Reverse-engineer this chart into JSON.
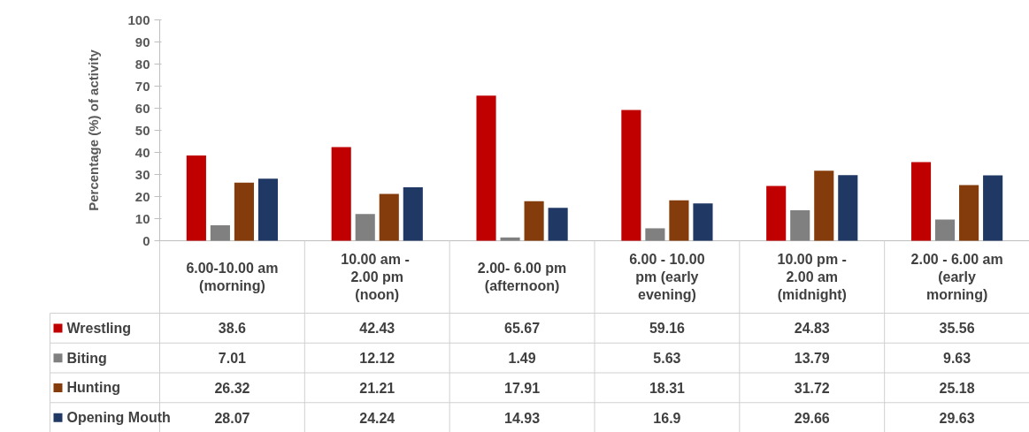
{
  "chart_data": {
    "type": "bar",
    "ylabel": "Percentage (%) of activity",
    "categories": [
      "6.00-10.00 am\n(morning)",
      "10.00  am -\n2.00 pm\n(noon)",
      "2.00- 6.00 pm\n(afternoon)",
      "6.00 - 10.00\npm (early\nevening)",
      "10.00 pm -\n2.00 am\n(midnight)",
      "2.00 - 6.00 am\n(early\nmorning)"
    ],
    "series": [
      {
        "name": "Wrestling",
        "color": "#c00000",
        "values": [
          38.6,
          42.43,
          65.67,
          59.16,
          24.83,
          35.56
        ]
      },
      {
        "name": "Biting",
        "color": "#808080",
        "values": [
          7.01,
          12.12,
          1.49,
          5.63,
          13.79,
          9.63
        ]
      },
      {
        "name": "Hunting",
        "color": "#843c0c",
        "values": [
          26.32,
          21.21,
          17.91,
          18.31,
          31.72,
          25.18
        ]
      },
      {
        "name": "Opening Mouth",
        "color": "#1f3864",
        "values": [
          28.07,
          24.24,
          14.93,
          16.9,
          29.66,
          29.63
        ]
      }
    ],
    "ylim": [
      0,
      100
    ],
    "yticks": [
      0,
      10,
      20,
      30,
      40,
      50,
      60,
      70,
      80,
      90,
      100
    ],
    "grid": false,
    "legend": "bottom left",
    "data_labels": true
  }
}
